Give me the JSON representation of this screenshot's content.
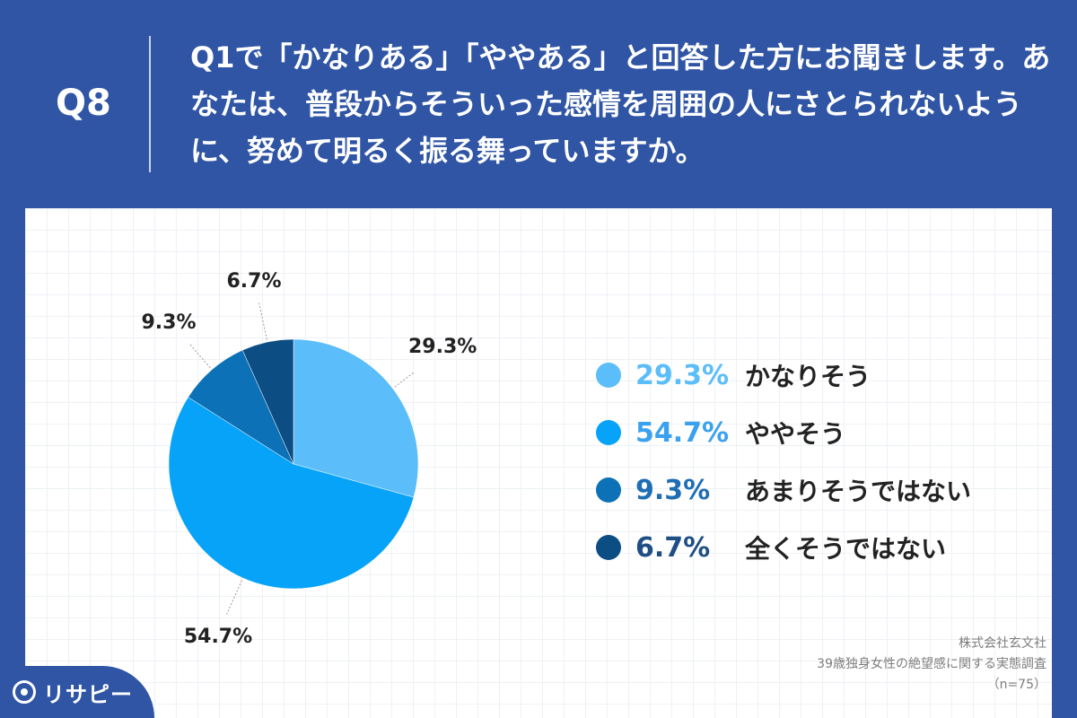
{
  "header": {
    "question_number": "Q8",
    "question_text": "Q1で「かなりある」「ややある」と回答した方にお聞きします。あなたは、普段からそういった感情を周囲の人にさとられないように、努めて明るく振る舞っていますか。"
  },
  "chart_data": {
    "type": "pie",
    "start_angle_deg": 0,
    "direction": "clockwise",
    "slices": [
      {
        "label": "かなりそう",
        "value": 29.3,
        "display": "29.3%",
        "color": "#5bbdf9"
      },
      {
        "label": "ややそう",
        "value": 54.7,
        "display": "54.7%",
        "color": "#07a3f8"
      },
      {
        "label": "あまりそうではない",
        "value": 9.3,
        "display": "9.3%",
        "color": "#0c71b6"
      },
      {
        "label": "全くそうではない",
        "value": 6.7,
        "display": "6.7%",
        "color": "#0c4d84"
      }
    ],
    "legend": {
      "placement": "right",
      "value_colors": [
        "#5bbdf9",
        "#3aa1ef",
        "#1f6db4",
        "#1f4e85"
      ]
    },
    "grid": true
  },
  "source": {
    "company": "株式会社玄文社",
    "survey": "39歳独身女性の絶望感に関する実態調査",
    "sample": "（n=75）"
  },
  "logo": {
    "text": "リサピー"
  },
  "colors": {
    "background": "#2f55a4",
    "panel": "#ffffff",
    "grid": "#eef1f5"
  }
}
